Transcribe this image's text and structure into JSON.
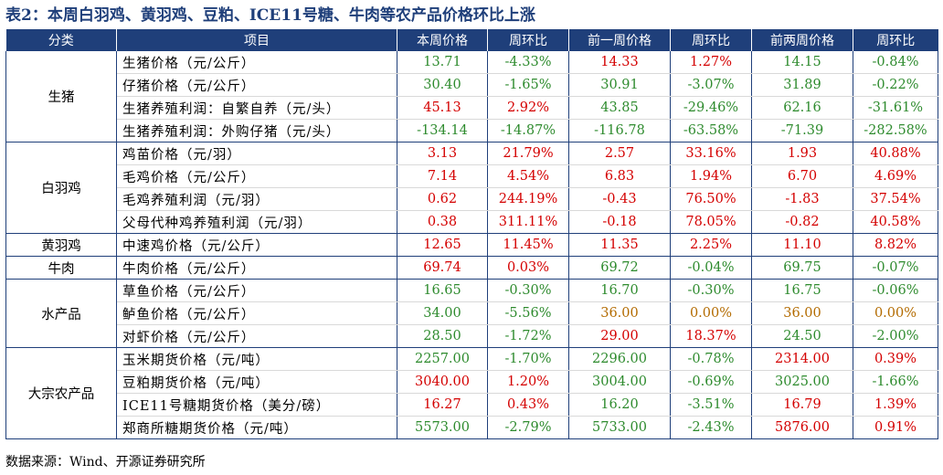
{
  "title": "表2：本周白羽鸡、黄羽鸡、豆粕、ICE11号糖、牛肉等农产品价格环比上涨",
  "header": [
    "分类",
    "项目",
    "本周价格",
    "周环比",
    "前一周价格",
    "周环比",
    "前两周价格",
    "周环比"
  ],
  "colors": {
    "header_bg": "#1f3f7a",
    "green": "#2e8b2e",
    "red": "#d40000",
    "orange": "#b36b00"
  },
  "groups": [
    {
      "category": "生猪",
      "rows": [
        {
          "item": "生猪价格（元/公斤）",
          "vals": [
            "13.71",
            "-4.33%",
            "14.33",
            "1.27%",
            "14.15",
            "-0.84%"
          ],
          "colors": [
            "g",
            "g",
            "r",
            "r",
            "g",
            "g"
          ]
        },
        {
          "item": "仔猪价格（元/公斤）",
          "vals": [
            "30.40",
            "-1.65%",
            "30.91",
            "-3.07%",
            "31.89",
            "-0.22%"
          ],
          "colors": [
            "g",
            "g",
            "g",
            "g",
            "g",
            "g"
          ]
        },
        {
          "item": "生猪养殖利润：自繁自养（元/头）",
          "vals": [
            "45.13",
            "2.92%",
            "43.85",
            "-29.46%",
            "62.16",
            "-31.61%"
          ],
          "colors": [
            "r",
            "r",
            "g",
            "g",
            "g",
            "g"
          ]
        },
        {
          "item": "生猪养殖利润：外购仔猪（元/头）",
          "vals": [
            "-134.14",
            "-14.87%",
            "-116.78",
            "-63.58%",
            "-71.39",
            "-282.58%"
          ],
          "colors": [
            "g",
            "g",
            "g",
            "g",
            "g",
            "g"
          ]
        }
      ]
    },
    {
      "category": "白羽鸡",
      "rows": [
        {
          "item": "鸡苗价格（元/羽）",
          "vals": [
            "3.13",
            "21.79%",
            "2.57",
            "33.16%",
            "1.93",
            "40.88%"
          ],
          "colors": [
            "r",
            "r",
            "r",
            "r",
            "r",
            "r"
          ]
        },
        {
          "item": "毛鸡价格（元/公斤）",
          "vals": [
            "7.14",
            "4.54%",
            "6.83",
            "1.94%",
            "6.70",
            "4.69%"
          ],
          "colors": [
            "r",
            "r",
            "r",
            "r",
            "r",
            "r"
          ]
        },
        {
          "item": "毛鸡养殖利润（元/羽）",
          "vals": [
            "0.62",
            "244.19%",
            "-0.43",
            "76.50%",
            "-1.83",
            "37.54%"
          ],
          "colors": [
            "r",
            "r",
            "r",
            "r",
            "r",
            "r"
          ]
        },
        {
          "item": "父母代种鸡养殖利润（元/羽）",
          "vals": [
            "0.38",
            "311.11%",
            "-0.18",
            "78.05%",
            "-0.82",
            "40.58%"
          ],
          "colors": [
            "r",
            "r",
            "r",
            "r",
            "r",
            "r"
          ]
        }
      ]
    },
    {
      "category": "黄羽鸡",
      "rows": [
        {
          "item": "中速鸡价格（元/公斤）",
          "vals": [
            "12.65",
            "11.45%",
            "11.35",
            "2.25%",
            "11.10",
            "8.82%"
          ],
          "colors": [
            "r",
            "r",
            "r",
            "r",
            "r",
            "r"
          ]
        }
      ]
    },
    {
      "category": "牛肉",
      "rows": [
        {
          "item": "牛肉价格（元/公斤）",
          "vals": [
            "69.74",
            "0.03%",
            "69.72",
            "-0.04%",
            "69.75",
            "-0.07%"
          ],
          "colors": [
            "r",
            "r",
            "g",
            "g",
            "g",
            "g"
          ]
        }
      ]
    },
    {
      "category": "水产品",
      "rows": [
        {
          "item": "草鱼价格（元/公斤）",
          "vals": [
            "16.65",
            "-0.30%",
            "16.70",
            "-0.30%",
            "16.75",
            "-0.06%"
          ],
          "colors": [
            "g",
            "g",
            "g",
            "g",
            "g",
            "g"
          ]
        },
        {
          "item": "鲈鱼价格（元/公斤）",
          "vals": [
            "34.00",
            "-5.56%",
            "36.00",
            "0.00%",
            "36.00",
            "0.00%"
          ],
          "colors": [
            "g",
            "g",
            "o",
            "o",
            "o",
            "o"
          ]
        },
        {
          "item": "对虾价格（元/公斤）",
          "vals": [
            "28.50",
            "-1.72%",
            "29.00",
            "18.37%",
            "24.50",
            "-2.00%"
          ],
          "colors": [
            "g",
            "g",
            "r",
            "r",
            "g",
            "g"
          ]
        }
      ]
    },
    {
      "category": "大宗农产品",
      "rows": [
        {
          "item": "玉米期货价格（元/吨）",
          "vals": [
            "2257.00",
            "-1.70%",
            "2296.00",
            "-0.78%",
            "2314.00",
            "0.39%"
          ],
          "colors": [
            "g",
            "g",
            "g",
            "g",
            "r",
            "r"
          ]
        },
        {
          "item": "豆粕期货价格（元/吨）",
          "vals": [
            "3040.00",
            "1.20%",
            "3004.00",
            "-0.69%",
            "3025.00",
            "-1.66%"
          ],
          "colors": [
            "r",
            "r",
            "g",
            "g",
            "g",
            "g"
          ]
        },
        {
          "item": "ICE11号糖期货价格（美分/磅）",
          "vals": [
            "16.27",
            "0.43%",
            "16.20",
            "-3.51%",
            "16.79",
            "1.39%"
          ],
          "colors": [
            "r",
            "r",
            "g",
            "g",
            "r",
            "r"
          ]
        },
        {
          "item": "郑商所糖期货价格（元/吨）",
          "vals": [
            "5573.00",
            "-2.79%",
            "5733.00",
            "-2.43%",
            "5876.00",
            "0.91%"
          ],
          "colors": [
            "g",
            "g",
            "g",
            "g",
            "r",
            "r"
          ]
        }
      ]
    }
  ],
  "source": "数据来源：Wind、开源证券研究所"
}
